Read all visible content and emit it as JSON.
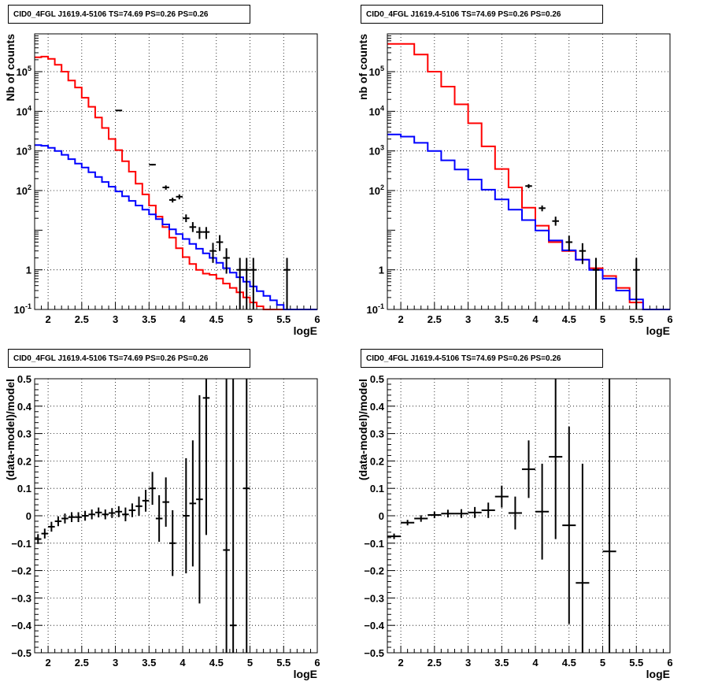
{
  "chart_data": [
    {
      "type": "line",
      "title": "CID0_4FGL J1619.4-5106 TS=74.69 PS=0.26 PS=0.26",
      "xlabel": "logE",
      "ylabel": "Nb of counts",
      "yscale": "log",
      "xlim": [
        1.8,
        6.0
      ],
      "ylim": [
        0.1,
        900000
      ],
      "xticks": [
        "2",
        "2.5",
        "3",
        "3.5",
        "4",
        "4.5",
        "5",
        "5.5",
        "6"
      ],
      "yticks": [
        "10⁻¹",
        "1",
        "10",
        "10²",
        "10³",
        "10⁴",
        "10⁵"
      ],
      "grid": true,
      "bin_edges": [
        1.8,
        1.9,
        2.0,
        2.1,
        2.2,
        2.3,
        2.4,
        2.5,
        2.6,
        2.7,
        2.8,
        2.9,
        3.0,
        3.1,
        3.2,
        3.3,
        3.4,
        3.5,
        3.6,
        3.7,
        3.8,
        3.9,
        4.0,
        4.1,
        4.2,
        4.3,
        4.4,
        4.5,
        4.6,
        4.7,
        4.8,
        4.9,
        5.0,
        5.1,
        5.2,
        5.3,
        5.4,
        5.5,
        5.6,
        5.7,
        5.8,
        5.9,
        6.0
      ],
      "series": [
        {
          "color": "#ff0000",
          "values": [
            230000,
            240000,
            210000,
            150000,
            100000,
            60000,
            40000,
            22000,
            13000,
            7000,
            3800,
            2000,
            1050,
            550,
            300,
            150,
            80,
            42,
            22,
            12,
            6.5,
            3.5,
            2.1,
            1.4,
            1.0,
            0.8,
            0.75,
            0.6,
            0.45,
            0.35,
            0.27,
            0.2,
            0.15,
            0.12,
            0.1,
            0.08,
            0.06,
            0.05,
            0.05,
            0.05,
            0.05,
            0.05
          ]
        },
        {
          "color": "#0000ff",
          "values": [
            1400,
            1350,
            1200,
            1000,
            800,
            620,
            480,
            380,
            290,
            220,
            165,
            125,
            95,
            72,
            55,
            42,
            33,
            25,
            19,
            14,
            10.5,
            8,
            6,
            4.5,
            3.4,
            2.6,
            2.0,
            1.5,
            1.1,
            0.85,
            0.65,
            0.5,
            0.38,
            0.29,
            0.22,
            0.17,
            0.13,
            0.1,
            0.1,
            0.1,
            0.1,
            0.1
          ]
        }
      ],
      "points": [
        {
          "x": 3.05,
          "y": 10500,
          "ylo": 10400,
          "yhi": 10600
        },
        {
          "x": 3.55,
          "y": 450,
          "ylo": 430,
          "yhi": 470
        },
        {
          "x": 3.75,
          "y": 120,
          "ylo": 105,
          "yhi": 135
        },
        {
          "x": 3.85,
          "y": 58,
          "ylo": 50,
          "yhi": 66
        },
        {
          "x": 3.95,
          "y": 70,
          "ylo": 60,
          "yhi": 80
        },
        {
          "x": 4.05,
          "y": 20,
          "ylo": 16,
          "yhi": 25
        },
        {
          "x": 4.15,
          "y": 12,
          "ylo": 9,
          "yhi": 16
        },
        {
          "x": 4.25,
          "y": 9,
          "ylo": 6,
          "yhi": 12
        },
        {
          "x": 4.35,
          "y": 9,
          "ylo": 6,
          "yhi": 12
        },
        {
          "x": 4.45,
          "y": 3,
          "ylo": 1.5,
          "yhi": 4.8
        },
        {
          "x": 4.55,
          "y": 5,
          "ylo": 3,
          "yhi": 7.5
        },
        {
          "x": 4.65,
          "y": 2,
          "ylo": 0.8,
          "yhi": 3.5
        },
        {
          "x": 4.85,
          "y": 1,
          "ylo": 0.1,
          "yhi": 2.0
        },
        {
          "x": 4.95,
          "y": 1,
          "ylo": 0.1,
          "yhi": 2.0
        },
        {
          "x": 5.05,
          "y": 1,
          "ylo": 0.1,
          "yhi": 2.0
        },
        {
          "x": 5.55,
          "y": 1,
          "ylo": 0.1,
          "yhi": 2.0
        }
      ]
    },
    {
      "type": "line",
      "title": "CID0_4FGL J1619.4-5106 TS=74.69 PS=0.26 PS=0.26",
      "xlabel": "logE",
      "ylabel": "nb of counts",
      "yscale": "log",
      "xlim": [
        1.8,
        6.0
      ],
      "ylim": [
        0.1,
        900000
      ],
      "xticks": [
        "2",
        "2.5",
        "3",
        "3.5",
        "4",
        "4.5",
        "5",
        "5.5",
        "6"
      ],
      "yticks": [
        "10⁻¹",
        "1",
        "10",
        "10²",
        "10³",
        "10⁴",
        "10⁵"
      ],
      "grid": true,
      "bin_edges": [
        1.8,
        2.0,
        2.2,
        2.4,
        2.6,
        2.8,
        3.0,
        3.2,
        3.4,
        3.6,
        3.8,
        4.0,
        4.2,
        4.4,
        4.6,
        4.8,
        5.0,
        5.2,
        5.4,
        5.6,
        5.8,
        6.0
      ],
      "series": [
        {
          "color": "#ff0000",
          "values": [
            500000,
            500000,
            270000,
            100000,
            42000,
            15000,
            5000,
            1300,
            350,
            120,
            37,
            13,
            5,
            3,
            1.8,
            1.1,
            0.7,
            0.35,
            0.15,
            0.1,
            0.1
          ]
        },
        {
          "color": "#0000ff",
          "values": [
            2600,
            2300,
            1600,
            1000,
            580,
            340,
            190,
            105,
            60,
            33,
            18,
            9.8,
            5.5,
            3.1,
            1.8,
            1.0,
            0.6,
            0.3,
            0.18,
            0.1,
            0.1
          ]
        }
      ],
      "points": [
        {
          "x": 3.9,
          "y": 130,
          "ylo": 115,
          "yhi": 145
        },
        {
          "x": 4.1,
          "y": 36,
          "ylo": 30,
          "yhi": 42
        },
        {
          "x": 4.3,
          "y": 17,
          "ylo": 13,
          "yhi": 22
        },
        {
          "x": 4.5,
          "y": 5,
          "ylo": 3,
          "yhi": 7.3
        },
        {
          "x": 4.7,
          "y": 3,
          "ylo": 1.4,
          "yhi": 4.7
        },
        {
          "x": 4.9,
          "y": 1,
          "ylo": 0.1,
          "yhi": 2.0
        },
        {
          "x": 5.5,
          "y": 1,
          "ylo": 0.1,
          "yhi": 2.0
        }
      ]
    },
    {
      "type": "scatter",
      "title": "CID0_4FGL J1619.4-5106 TS=74.69 PS=0.26 PS=0.26",
      "xlabel": "logE",
      "ylabel": "(data-model)/model",
      "xlim": [
        1.8,
        6.0
      ],
      "ylim": [
        -0.5,
        0.5
      ],
      "xticks": [
        "2",
        "2.5",
        "3",
        "3.5",
        "4",
        "4.5",
        "5",
        "5.5",
        "6"
      ],
      "yticks": [
        "−0.5",
        "−0.4",
        "−0.3",
        "−0.2",
        "−0.1",
        "0",
        "0.1",
        "0.2",
        "0.3",
        "0.4",
        "0.5"
      ],
      "grid": true,
      "xerr": 0.05,
      "points": [
        {
          "x": 1.85,
          "y": -0.085,
          "err": 0.018
        },
        {
          "x": 1.95,
          "y": -0.065,
          "err": 0.018
        },
        {
          "x": 2.05,
          "y": -0.04,
          "err": 0.018
        },
        {
          "x": 2.15,
          "y": -0.02,
          "err": 0.018
        },
        {
          "x": 2.25,
          "y": -0.01,
          "err": 0.018
        },
        {
          "x": 2.35,
          "y": -0.005,
          "err": 0.018
        },
        {
          "x": 2.45,
          "y": -0.005,
          "err": 0.018
        },
        {
          "x": 2.55,
          "y": 0.0,
          "err": 0.018
        },
        {
          "x": 2.65,
          "y": 0.005,
          "err": 0.018
        },
        {
          "x": 2.75,
          "y": 0.012,
          "err": 0.018
        },
        {
          "x": 2.85,
          "y": 0.005,
          "err": 0.018
        },
        {
          "x": 2.95,
          "y": 0.01,
          "err": 0.018
        },
        {
          "x": 3.05,
          "y": 0.015,
          "err": 0.02
        },
        {
          "x": 3.15,
          "y": 0.005,
          "err": 0.025
        },
        {
          "x": 3.25,
          "y": 0.02,
          "err": 0.025
        },
        {
          "x": 3.35,
          "y": 0.035,
          "err": 0.035
        },
        {
          "x": 3.45,
          "y": 0.055,
          "err": 0.04
        },
        {
          "x": 3.55,
          "y": 0.1,
          "err": 0.06
        },
        {
          "x": 3.65,
          "y": -0.01,
          "err": 0.085
        },
        {
          "x": 3.75,
          "y": 0.05,
          "err": 0.09
        },
        {
          "x": 3.85,
          "y": -0.1,
          "err": 0.12
        },
        {
          "x": 4.05,
          "y": 0.0,
          "err": 0.21
        },
        {
          "x": 4.15,
          "y": 0.045,
          "err": 0.23
        },
        {
          "x": 4.25,
          "y": 0.06,
          "err": 0.38
        },
        {
          "x": 4.35,
          "y": 0.43,
          "err": 0.5
        },
        {
          "x": 4.65,
          "y": -0.125,
          "err": 0.9
        },
        {
          "x": 4.75,
          "y": -0.4,
          "err": 1.0
        },
        {
          "x": 4.95,
          "y": 0.1,
          "err": 1.0
        }
      ]
    },
    {
      "type": "scatter",
      "title": "CID0_4FGL J1619.4-5106 TS=74.69 PS=0.26 PS=0.26",
      "xlabel": "logE",
      "ylabel": "(data-model)/model",
      "xlim": [
        1.8,
        6.0
      ],
      "ylim": [
        -0.5,
        0.5
      ],
      "xticks": [
        "2",
        "2.5",
        "3",
        "3.5",
        "4",
        "4.5",
        "5",
        "5.5",
        "6"
      ],
      "yticks": [
        "−0.5",
        "−0.4",
        "−0.3",
        "−0.2",
        "−0.1",
        "0",
        "0.1",
        "0.2",
        "0.3",
        "0.4",
        "0.5"
      ],
      "grid": true,
      "xerr": 0.1,
      "points": [
        {
          "x": 1.9,
          "y": -0.075,
          "err": 0.01
        },
        {
          "x": 2.1,
          "y": -0.025,
          "err": 0.01
        },
        {
          "x": 2.3,
          "y": -0.01,
          "err": 0.012
        },
        {
          "x": 2.5,
          "y": 0.003,
          "err": 0.012
        },
        {
          "x": 2.7,
          "y": 0.008,
          "err": 0.014
        },
        {
          "x": 2.9,
          "y": 0.008,
          "err": 0.016
        },
        {
          "x": 3.1,
          "y": 0.012,
          "err": 0.02
        },
        {
          "x": 3.3,
          "y": 0.02,
          "err": 0.028
        },
        {
          "x": 3.5,
          "y": 0.07,
          "err": 0.04
        },
        {
          "x": 3.7,
          "y": 0.01,
          "err": 0.06
        },
        {
          "x": 3.9,
          "y": 0.17,
          "err": 0.105
        },
        {
          "x": 4.1,
          "y": 0.015,
          "err": 0.175
        },
        {
          "x": 4.3,
          "y": 0.215,
          "err": 0.3
        },
        {
          "x": 4.5,
          "y": -0.035,
          "err": 0.36
        },
        {
          "x": 4.7,
          "y": -0.245,
          "err": 0.435
        },
        {
          "x": 5.1,
          "y": -0.13,
          "err": 0.8
        }
      ]
    }
  ]
}
